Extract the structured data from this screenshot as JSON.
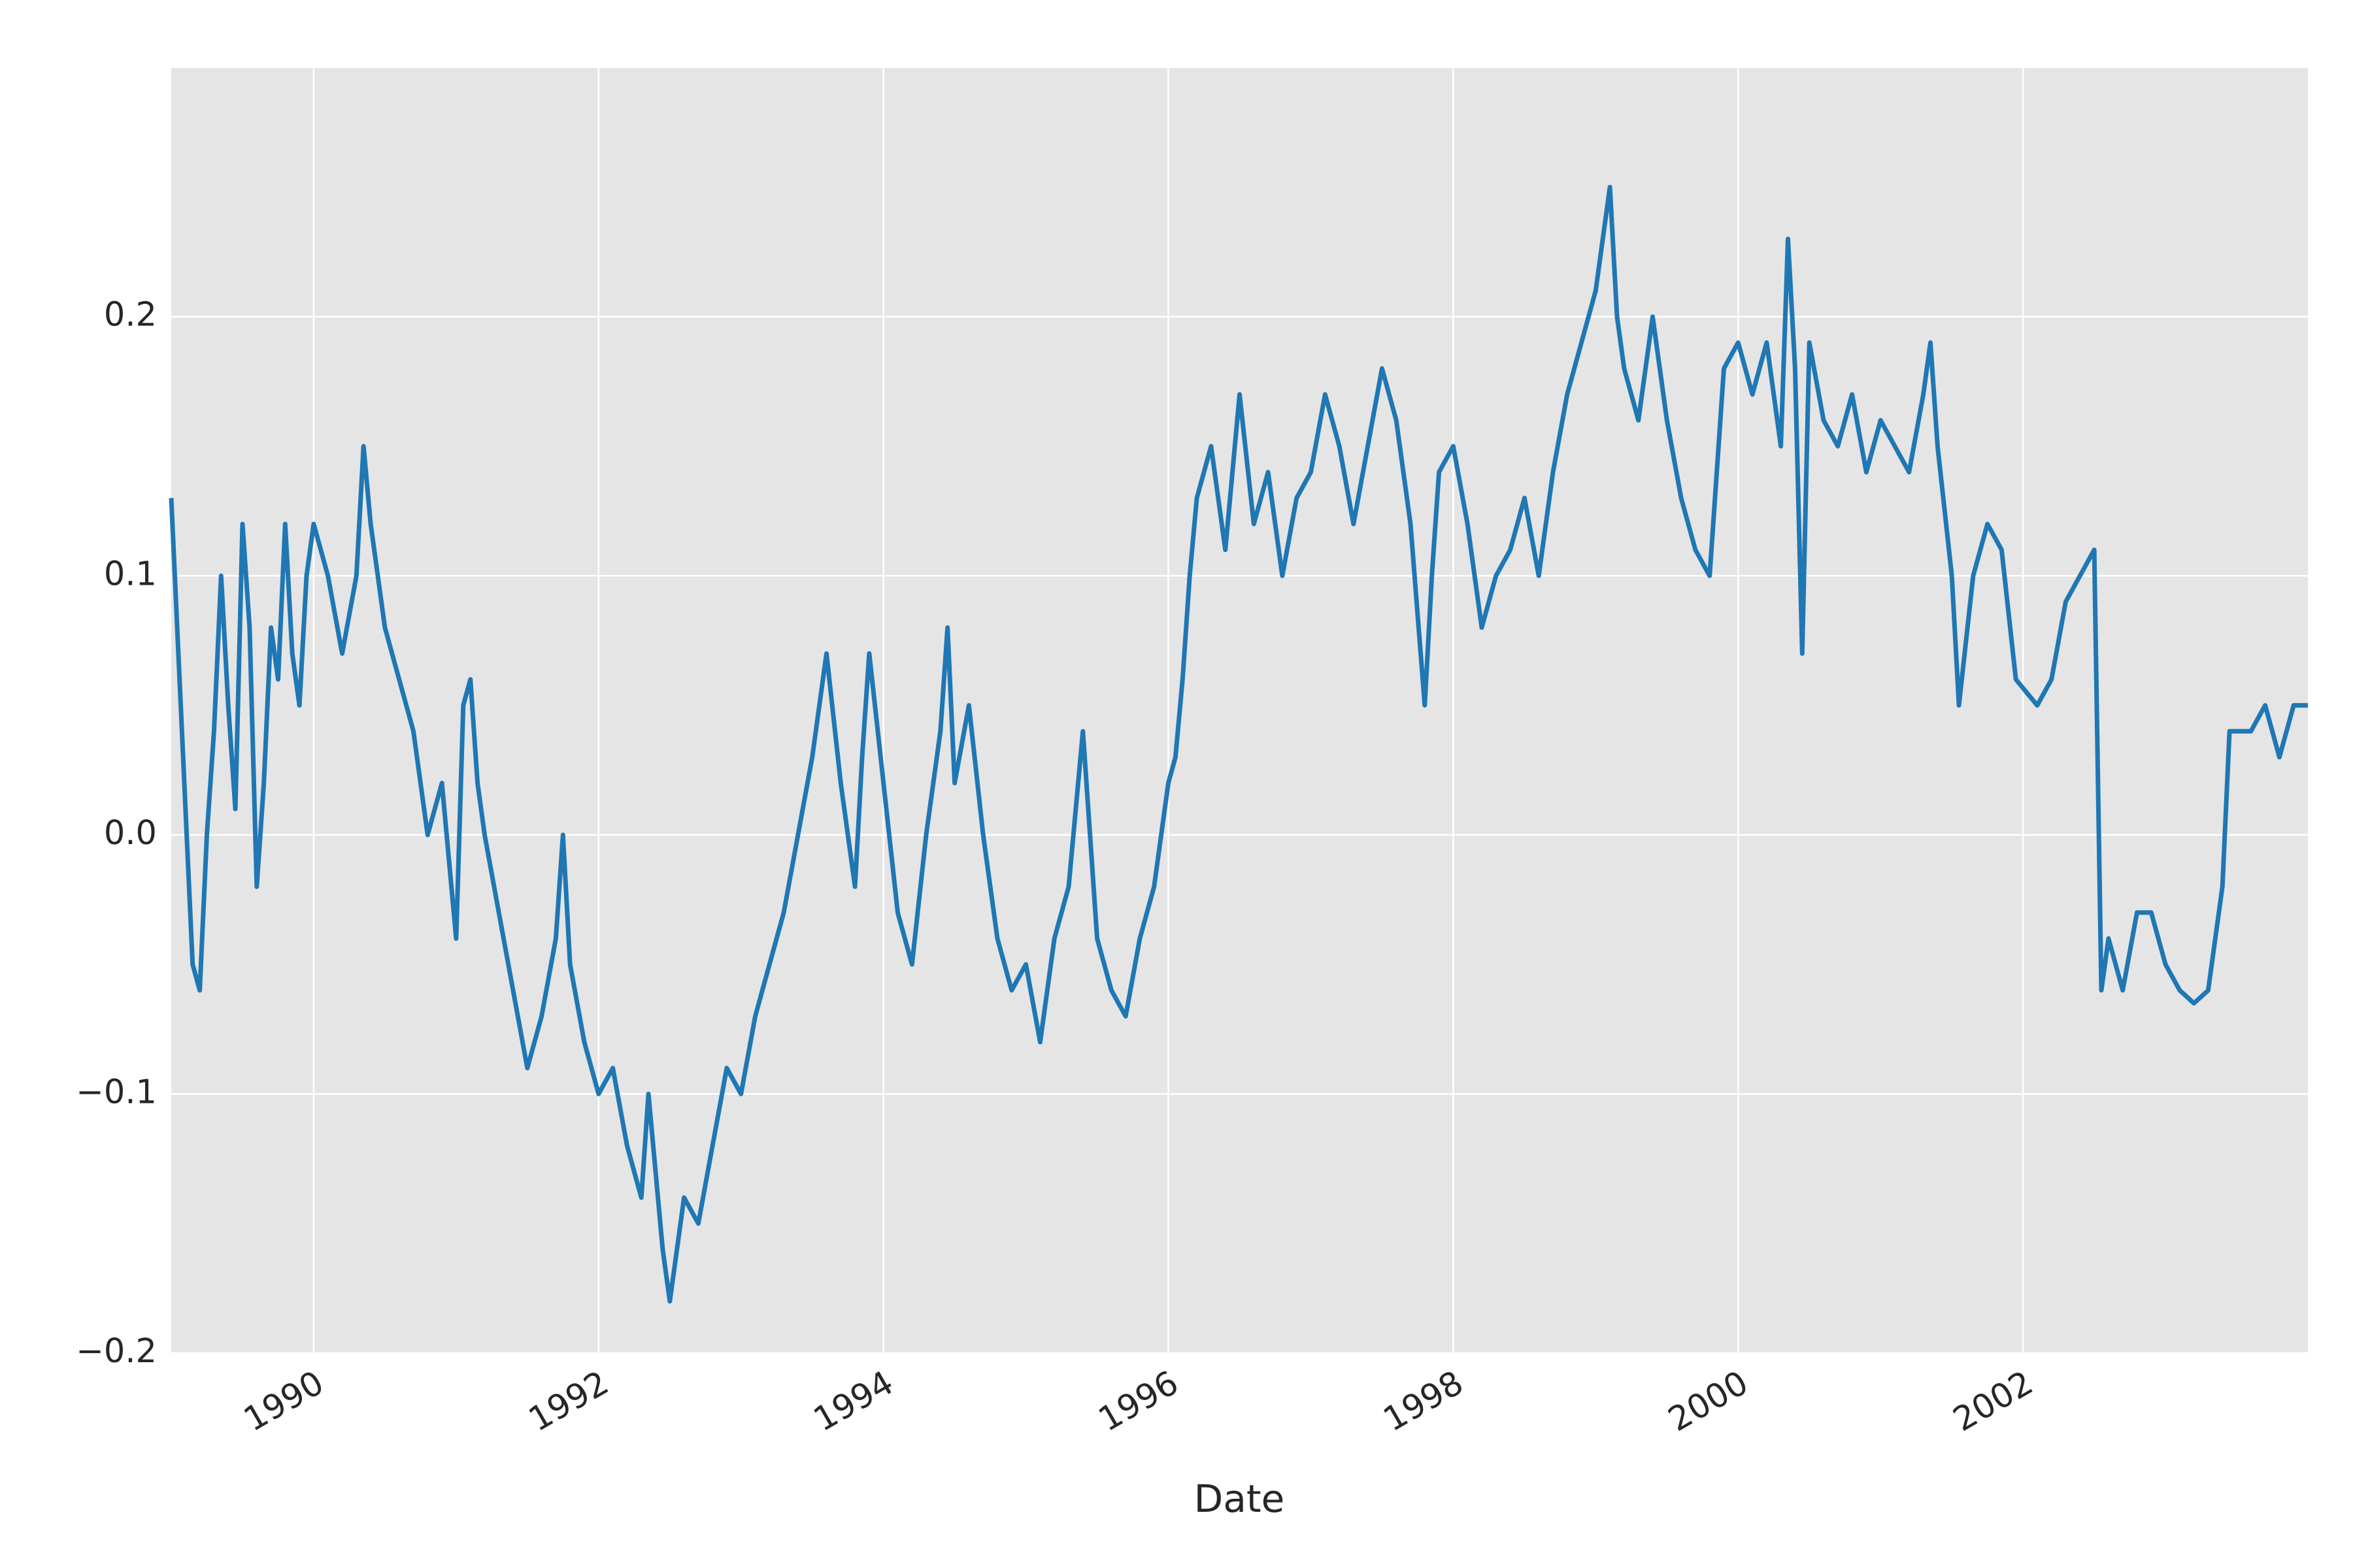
{
  "chart_data": {
    "type": "line",
    "xlabel": "Date",
    "x": [
      1989.0,
      1989.05,
      1989.1,
      1989.15,
      1989.2,
      1989.25,
      1989.3,
      1989.35,
      1989.4,
      1989.45,
      1989.5,
      1989.55,
      1989.6,
      1989.65,
      1989.7,
      1989.75,
      1989.8,
      1989.85,
      1989.9,
      1989.95,
      1990.0,
      1990.1,
      1990.2,
      1990.3,
      1990.35,
      1990.4,
      1990.5,
      1990.6,
      1990.7,
      1990.8,
      1990.9,
      1991.0,
      1991.05,
      1991.1,
      1991.15,
      1991.2,
      1991.3,
      1991.4,
      1991.5,
      1991.6,
      1991.7,
      1991.75,
      1991.8,
      1991.9,
      1992.0,
      1992.1,
      1992.2,
      1992.3,
      1992.35,
      1992.4,
      1992.45,
      1992.5,
      1992.6,
      1992.7,
      1992.8,
      1992.9,
      1993.0,
      1993.1,
      1993.2,
      1993.3,
      1993.4,
      1993.5,
      1993.6,
      1993.7,
      1993.8,
      1993.85,
      1993.9,
      1994.0,
      1994.1,
      1994.2,
      1994.3,
      1994.4,
      1994.45,
      1994.5,
      1994.6,
      1994.7,
      1994.8,
      1994.9,
      1995.0,
      1995.1,
      1995.2,
      1995.3,
      1995.4,
      1995.5,
      1995.6,
      1995.7,
      1995.8,
      1995.9,
      1996.0,
      1996.05,
      1996.1,
      1996.15,
      1996.2,
      1996.3,
      1996.4,
      1996.5,
      1996.6,
      1996.7,
      1996.8,
      1996.9,
      1997.0,
      1997.1,
      1997.2,
      1997.3,
      1997.4,
      1997.5,
      1997.6,
      1997.7,
      1997.8,
      1997.85,
      1997.9,
      1998.0,
      1998.1,
      1998.2,
      1998.3,
      1998.4,
      1998.5,
      1998.6,
      1998.7,
      1998.8,
      1998.9,
      1999.0,
      1999.1,
      1999.15,
      1999.2,
      1999.3,
      1999.4,
      1999.5,
      1999.6,
      1999.7,
      1999.8,
      1999.9,
      2000.0,
      2000.1,
      2000.2,
      2000.3,
      2000.35,
      2000.4,
      2000.45,
      2000.5,
      2000.6,
      2000.7,
      2000.8,
      2000.9,
      2001.0,
      2001.1,
      2001.2,
      2001.3,
      2001.35,
      2001.4,
      2001.5,
      2001.55,
      2001.65,
      2001.75,
      2001.85,
      2001.95,
      2002.1,
      2002.2,
      2002.3,
      2002.4,
      2002.5,
      2002.55,
      2002.6,
      2002.7,
      2002.8,
      2002.9,
      2003.0,
      2003.1,
      2003.2,
      2003.3,
      2003.4,
      2003.45,
      2003.6,
      2003.7,
      2003.8,
      2003.9,
      2004.0
    ],
    "values": [
      0.13,
      0.07,
      0.01,
      -0.05,
      -0.06,
      0.0,
      0.04,
      0.1,
      0.05,
      0.01,
      0.12,
      0.08,
      -0.02,
      0.02,
      0.08,
      0.06,
      0.12,
      0.07,
      0.05,
      0.1,
      0.12,
      0.1,
      0.07,
      0.1,
      0.15,
      0.12,
      0.08,
      0.06,
      0.04,
      0.0,
      0.02,
      -0.04,
      0.05,
      0.06,
      0.02,
      0.0,
      -0.03,
      -0.06,
      -0.09,
      -0.07,
      -0.04,
      0.0,
      -0.05,
      -0.08,
      -0.1,
      -0.09,
      -0.12,
      -0.14,
      -0.1,
      -0.13,
      -0.16,
      -0.18,
      -0.14,
      -0.15,
      -0.12,
      -0.09,
      -0.1,
      -0.07,
      -0.05,
      -0.03,
      0.0,
      0.03,
      0.07,
      0.02,
      -0.02,
      0.03,
      0.07,
      0.02,
      -0.03,
      -0.05,
      0.0,
      0.04,
      0.08,
      0.02,
      0.05,
      0.0,
      -0.04,
      -0.06,
      -0.05,
      -0.08,
      -0.04,
      -0.02,
      0.04,
      -0.04,
      -0.06,
      -0.07,
      -0.04,
      -0.02,
      0.02,
      0.03,
      0.06,
      0.1,
      0.13,
      0.15,
      0.11,
      0.17,
      0.12,
      0.14,
      0.1,
      0.13,
      0.14,
      0.17,
      0.15,
      0.12,
      0.15,
      0.18,
      0.16,
      0.12,
      0.05,
      0.1,
      0.14,
      0.15,
      0.12,
      0.08,
      0.1,
      0.11,
      0.13,
      0.1,
      0.14,
      0.17,
      0.19,
      0.21,
      0.25,
      0.2,
      0.18,
      0.16,
      0.2,
      0.16,
      0.13,
      0.11,
      0.1,
      0.18,
      0.19,
      0.17,
      0.19,
      0.15,
      0.23,
      0.18,
      0.07,
      0.19,
      0.16,
      0.15,
      0.17,
      0.14,
      0.16,
      0.15,
      0.14,
      0.17,
      0.19,
      0.15,
      0.1,
      0.05,
      0.1,
      0.12,
      0.11,
      0.06,
      0.05,
      0.06,
      0.09,
      0.1,
      0.11,
      -0.06,
      -0.04,
      -0.06,
      -0.03,
      -0.03,
      -0.05,
      -0.06,
      -0.065,
      -0.06,
      -0.02,
      0.04,
      0.04,
      0.05,
      0.03,
      0.05,
      0.05
    ],
    "color": "#1f77b4",
    "xlim": [
      1989.0,
      2004.0
    ],
    "xticks": [
      1990,
      1992,
      1994,
      1996,
      1998,
      2000,
      2002
    ],
    "ylim": [
      -0.2,
      0.296
    ],
    "yticks": [
      {
        "value": -0.2,
        "label": "−0.2"
      },
      {
        "value": -0.1,
        "label": "−0.1"
      },
      {
        "value": 0,
        "label": "0.0"
      },
      0.1,
      0.2
    ],
    "grid": true
  }
}
